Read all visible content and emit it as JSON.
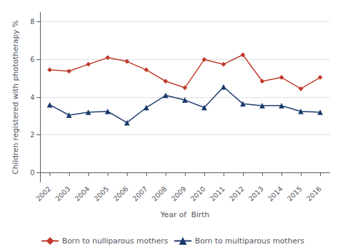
{
  "chart_data": {
    "type": "line",
    "xlabel": "Year of  Birth",
    "ylabel": "Children registered with phototherapy %",
    "x": [
      2002,
      2003,
      2004,
      2005,
      2006,
      2007,
      2008,
      2009,
      2010,
      2011,
      2012,
      2013,
      2014,
      2015,
      2016
    ],
    "series": [
      {
        "name": "Born to nulliparous mothers",
        "color": "#c0392b",
        "marker": "diamond",
        "values": [
          5.45,
          5.38,
          5.75,
          6.1,
          5.9,
          5.45,
          4.85,
          4.5,
          6.0,
          5.75,
          6.25,
          4.85,
          5.05,
          4.45,
          5.05
        ]
      },
      {
        "name": "Born to multiparous mothers",
        "color": "#1a3a6b",
        "marker": "triangle",
        "values": [
          3.6,
          3.05,
          3.2,
          3.25,
          2.65,
          3.45,
          4.1,
          3.85,
          3.45,
          4.55,
          3.65,
          3.55,
          3.55,
          3.25,
          3.2
        ]
      }
    ],
    "xlim": [
      2001.5,
      2016.5
    ],
    "xticks": [
      2002,
      2003,
      2004,
      2005,
      2006,
      2007,
      2008,
      2009,
      2010,
      2011,
      2012,
      2013,
      2014,
      2015,
      2016
    ],
    "ylim": [
      -0.5,
      8.5
    ],
    "yticks": [
      0,
      2,
      4,
      6,
      8
    ],
    "grid": true,
    "legend": "bottom"
  }
}
